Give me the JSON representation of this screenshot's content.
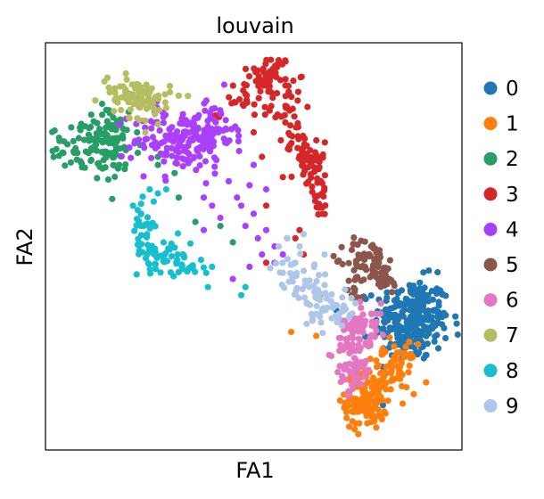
{
  "chart_data": {
    "type": "scatter",
    "title": "louvain",
    "xlabel": "FA1",
    "ylabel": "FA2",
    "xlim": [
      0,
      100
    ],
    "ylim": [
      0,
      100
    ],
    "grid": false,
    "legend_position": "right",
    "series": [
      {
        "name": "0",
        "color": "#1f77b4",
        "clusters": [
          {
            "cx": 88,
            "cy": 32,
            "sx": 4.5,
            "sy": 5.0,
            "n": 260
          }
        ]
      },
      {
        "name": "1",
        "color": "#ff7f0e",
        "clusters": [
          {
            "cx": 77,
            "cy": 12,
            "sx": 2.5,
            "sy": 3.5,
            "n": 120
          },
          {
            "cx": 83,
            "cy": 20,
            "sx": 3.0,
            "sy": 3.0,
            "n": 70
          }
        ],
        "points": [
          [
            59,
            29
          ],
          [
            65,
            28
          ]
        ]
      },
      {
        "name": "2",
        "color": "#279e68",
        "clusters": [
          {
            "cx": 16,
            "cy": 74,
            "sx": 3.5,
            "sy": 4.5,
            "n": 70
          },
          {
            "cx": 8,
            "cy": 74,
            "sx": 3.5,
            "sy": 2.5,
            "n": 40
          },
          {
            "cx": 13,
            "cy": 79,
            "sx": 3.0,
            "sy": 3.0,
            "n": 30
          }
        ],
        "points": [
          [
            22,
            78
          ],
          [
            27,
            70
          ],
          [
            32,
            62
          ],
          [
            36,
            56
          ],
          [
            42,
            55
          ],
          [
            45,
            51
          ],
          [
            27,
            72
          ],
          [
            31,
            68
          ],
          [
            20,
            83
          ]
        ]
      },
      {
        "name": "3",
        "color": "#d62728",
        "clusters": [
          {
            "cx": 54,
            "cy": 92,
            "sx": 2.5,
            "sy": 2.5,
            "n": 55
          },
          {
            "cx": 58,
            "cy": 84,
            "sx": 2.0,
            "sy": 2.5,
            "n": 25
          },
          {
            "cx": 63,
            "cy": 70,
            "sx": 2.0,
            "sy": 3.5,
            "n": 45
          },
          {
            "cx": 66,
            "cy": 62,
            "sx": 1.5,
            "sy": 2.5,
            "n": 20
          },
          {
            "cx": 47,
            "cy": 86,
            "sx": 3.0,
            "sy": 2.0,
            "n": 20
          },
          {
            "cx": 60,
            "cy": 77,
            "sx": 1.5,
            "sy": 2.0,
            "n": 15
          }
        ],
        "points": [
          [
            42,
            83
          ],
          [
            50,
            78
          ],
          [
            52,
            72
          ],
          [
            57,
            67
          ],
          [
            53,
            60
          ],
          [
            60,
            52
          ],
          [
            62,
            48
          ],
          [
            53,
            46
          ],
          [
            66,
            38
          ],
          [
            61,
            54
          ]
        ]
      },
      {
        "name": "4",
        "color": "#aa40fc",
        "clusters": [
          {
            "cx": 33,
            "cy": 76,
            "sx": 6.0,
            "sy": 4.0,
            "n": 160
          },
          {
            "cx": 40,
            "cy": 80,
            "sx": 2.5,
            "sy": 2.5,
            "n": 30
          }
        ],
        "points": [
          [
            38,
            62
          ],
          [
            40,
            60
          ],
          [
            42,
            57
          ],
          [
            46,
            62
          ],
          [
            48,
            55
          ],
          [
            50,
            58
          ],
          [
            51,
            52
          ],
          [
            52,
            48
          ],
          [
            55,
            50
          ],
          [
            58,
            52
          ],
          [
            53,
            54
          ],
          [
            47,
            60
          ],
          [
            44,
            66
          ],
          [
            49,
            65
          ],
          [
            55,
            46
          ],
          [
            38,
            54
          ],
          [
            45,
            42
          ],
          [
            57,
            48
          ],
          [
            49,
            45
          ],
          [
            50,
            70
          ],
          [
            53,
            64
          ]
        ]
      },
      {
        "name": "5",
        "color": "#8c564b",
        "clusters": [
          {
            "cx": 77,
            "cy": 47,
            "sx": 2.5,
            "sy": 2.5,
            "n": 55
          },
          {
            "cx": 81,
            "cy": 42,
            "sx": 2.0,
            "sy": 2.0,
            "n": 30
          },
          {
            "cx": 75,
            "cy": 40,
            "sx": 1.5,
            "sy": 2.0,
            "n": 15
          }
        ]
      },
      {
        "name": "6",
        "color": "#e377c2",
        "clusters": [
          {
            "cx": 74,
            "cy": 24,
            "sx": 2.2,
            "sy": 5.0,
            "n": 90
          },
          {
            "cx": 77,
            "cy": 31,
            "sx": 2.5,
            "sy": 2.5,
            "n": 40
          }
        ]
      },
      {
        "name": "7",
        "color": "#b5bd61",
        "clusters": [
          {
            "cx": 23,
            "cy": 86,
            "sx": 3.5,
            "sy": 2.2,
            "n": 60
          },
          {
            "cx": 20,
            "cy": 89,
            "sx": 2.5,
            "sy": 1.5,
            "n": 25
          }
        ],
        "points": [
          [
            32,
            87
          ],
          [
            24,
            78
          ],
          [
            27,
            80
          ],
          [
            29,
            84
          ]
        ]
      },
      {
        "name": "8",
        "color": "#17becf",
        "clusters": [
          {
            "cx": 28,
            "cy": 48,
            "sx": 3.5,
            "sy": 2.0,
            "n": 45
          },
          {
            "cx": 23,
            "cy": 55,
            "sx": 1.5,
            "sy": 3.0,
            "n": 25
          },
          {
            "cx": 34,
            "cy": 45,
            "sx": 2.0,
            "sy": 1.2,
            "n": 20
          }
        ],
        "points": [
          [
            27,
            63
          ],
          [
            25,
            64
          ],
          [
            29,
            64
          ],
          [
            23,
            58
          ],
          [
            40,
            45
          ],
          [
            39,
            40
          ],
          [
            48,
            40
          ],
          [
            47,
            38
          ],
          [
            21,
            60
          ],
          [
            26,
            61
          ]
        ]
      },
      {
        "name": "9",
        "color": "#aec7e8",
        "clusters": [
          {
            "cx": 64,
            "cy": 38,
            "sx": 3.0,
            "sy": 3.0,
            "n": 45
          },
          {
            "cx": 70,
            "cy": 34,
            "sx": 2.5,
            "sy": 3.0,
            "n": 35
          },
          {
            "cx": 58,
            "cy": 45,
            "sx": 2.0,
            "sy": 2.5,
            "n": 15
          }
        ],
        "points": [
          [
            56,
            50
          ],
          [
            58,
            52
          ],
          [
            62,
            53
          ],
          [
            67,
            48
          ],
          [
            62,
            44
          ],
          [
            60,
            46
          ],
          [
            61,
            50
          ]
        ]
      }
    ]
  }
}
